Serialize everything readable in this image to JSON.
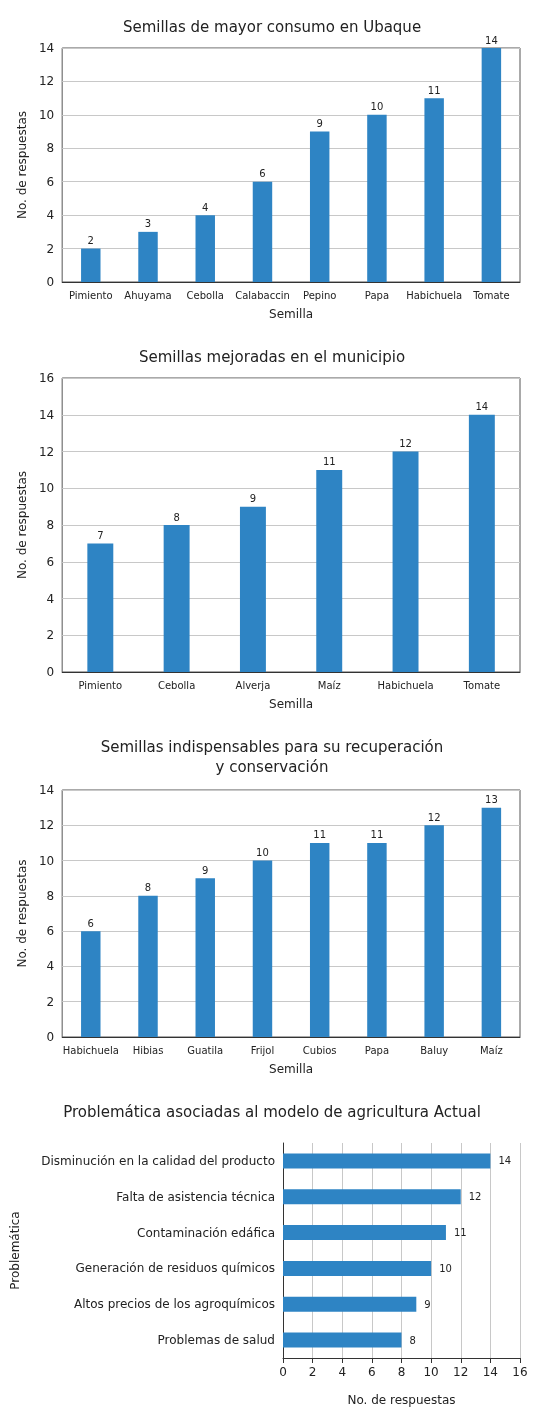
{
  "chart_data": [
    {
      "type": "bar",
      "title": "Semillas de mayor consumo en Ubaque",
      "xlabel": "Semilla",
      "ylabel": "No. de respuestas",
      "categories": [
        "Pimiento",
        "Ahuyama",
        "Cebolla",
        "Calabaccin",
        "Pepino",
        "Papa",
        "Habichuela",
        "Tomate"
      ],
      "values": [
        2,
        3,
        4,
        6,
        9,
        10,
        11,
        14
      ],
      "color": "#2e84c4",
      "ylim": [
        0,
        14
      ],
      "yticks": [
        0,
        2,
        4,
        6,
        8,
        10,
        12,
        14
      ],
      "grid": "y",
      "data_labels": true
    },
    {
      "type": "bar",
      "title": "Semillas mejoradas en el municipio",
      "xlabel": "Semilla",
      "ylabel": "No. de respuestas",
      "categories": [
        "Pimiento",
        "Cebolla",
        "Alverja",
        "Maíz",
        "Habichuela",
        "Tomate"
      ],
      "values": [
        7,
        8,
        9,
        11,
        12,
        14
      ],
      "color": "#2e84c4",
      "ylim": [
        0,
        16
      ],
      "yticks": [
        0,
        2,
        4,
        6,
        8,
        10,
        12,
        14,
        16
      ],
      "grid": "y",
      "data_labels": true
    },
    {
      "type": "bar",
      "title": "Semillas indispensables para su recuperación\ny conservación",
      "xlabel": "Semilla",
      "ylabel": "No. de respuestas",
      "categories": [
        "Habichuela",
        "Hibias",
        "Guatila",
        "Frijol",
        "Cubios",
        "Papa",
        "Baluy",
        "Maíz"
      ],
      "values": [
        6,
        8,
        9,
        10,
        11,
        11,
        12,
        13
      ],
      "color": "#2e84c4",
      "ylim": [
        0,
        14
      ],
      "yticks": [
        0,
        2,
        4,
        6,
        8,
        10,
        12,
        14
      ],
      "grid": "y",
      "data_labels": true
    },
    {
      "type": "bar",
      "orientation": "horizontal",
      "title": "Problemática asociadas al modelo de agricultura Actual",
      "xlabel": "No. de respuestas",
      "ylabel": "Problemática",
      "categories": [
        "Disminución en la calidad del producto",
        "Falta de asistencia técnica",
        "Contaminación edáfica",
        "Generación de residuos químicos",
        "Altos precios de los agroquímicos",
        "Problemas de salud"
      ],
      "values": [
        14,
        12,
        11,
        10,
        9,
        8
      ],
      "color": "#2e84c4",
      "xlim": [
        0,
        16
      ],
      "xticks": [
        0,
        2,
        4,
        6,
        8,
        10,
        12,
        14,
        16
      ],
      "grid": "x",
      "data_labels": true
    }
  ]
}
